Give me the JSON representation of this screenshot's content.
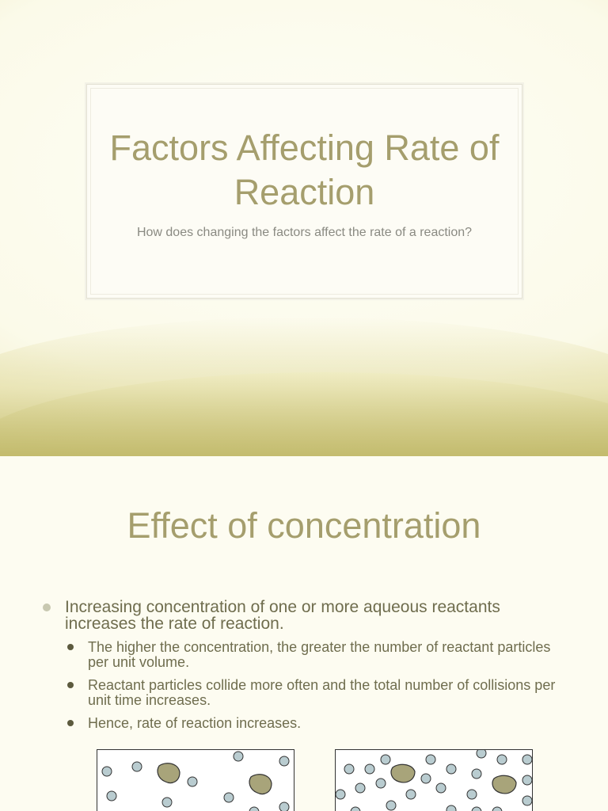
{
  "slide1": {
    "title": "Factors Affecting Rate of Reaction",
    "subtitle": "How does changing the factors affect the rate of a reaction?"
  },
  "slide2": {
    "title": "Effect of concentration",
    "bullet": "Increasing concentration of one or more aqueous reactants increases the rate of reaction.",
    "sub_bullets": [
      "The higher the concentration, the greater the number of reactant particles per unit volume.",
      "Reactant particles collide more often and the total number of collisions per unit time increases.",
      "Hence, rate of reaction increases."
    ]
  },
  "colors": {
    "title": "#a59e6d",
    "accent_olive": "#aea649",
    "particle_fill": "#b9ccd0",
    "solid_fill": "#a8a47a"
  }
}
